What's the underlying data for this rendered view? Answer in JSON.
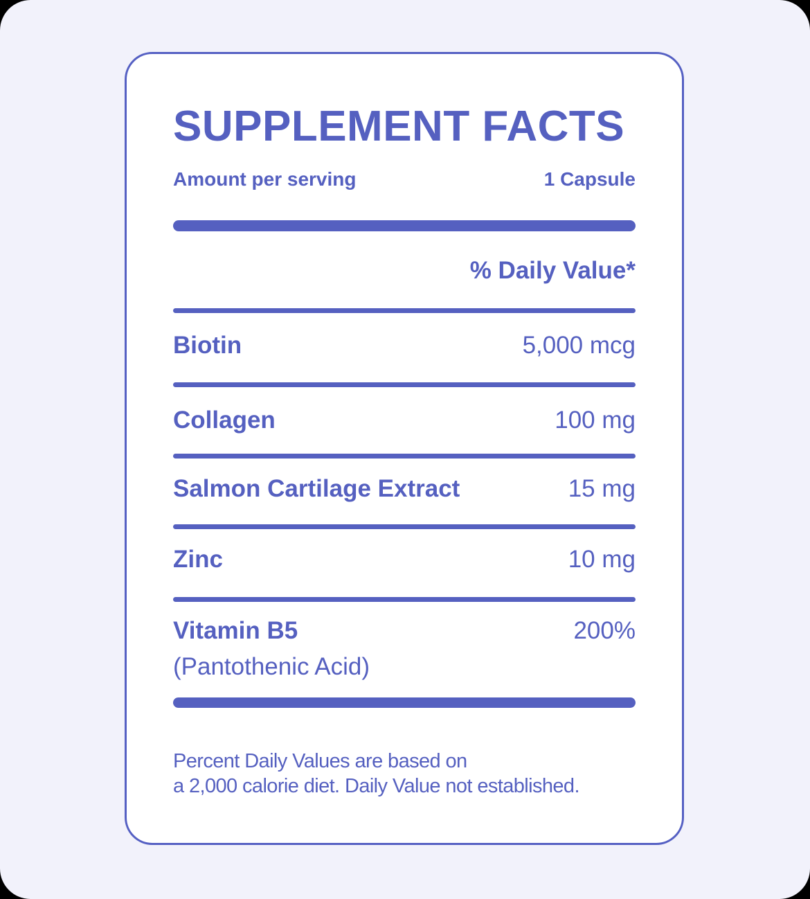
{
  "header": {
    "title": "SUPPLEMENT FACTS",
    "serving_label": "Amount per serving",
    "serving_size": "1 Capsule",
    "daily_value_header": "% Daily Value*"
  },
  "nutrients": [
    {
      "name": "Biotin",
      "value": "5,000 mcg"
    },
    {
      "name": "Collagen",
      "value": "100 mg"
    },
    {
      "name": "Salmon Cartilage Extract",
      "value": "15 mg"
    },
    {
      "name": "Zinc",
      "value": "10 mg"
    },
    {
      "name": "Vitamin B5",
      "sub": "(Pantothenic Acid)",
      "value": "200%"
    }
  ],
  "footnote": {
    "line1": "Percent Daily Values are based on",
    "line2": "a 2,000 calorie diet. Daily Value not established."
  },
  "colors": {
    "accent": "#5560C0",
    "card_border": "#5560C3",
    "page_background": "#F2F2FB",
    "card_background": "#FFFFFF"
  }
}
